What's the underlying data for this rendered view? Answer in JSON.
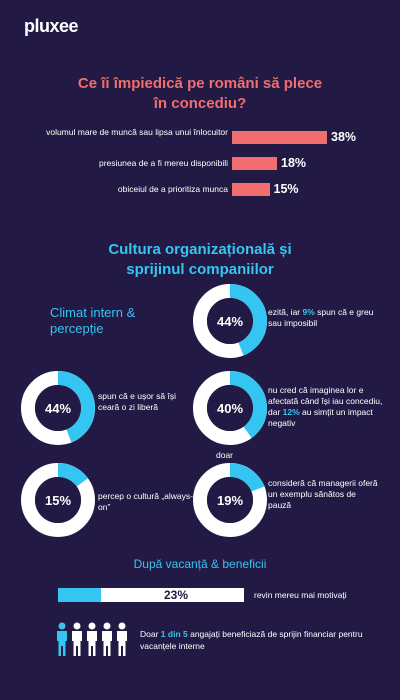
{
  "brand": {
    "logo": "pluxee"
  },
  "colors": {
    "background": "#221a44",
    "coral": "#f06e6e",
    "cyan": "#35c5f2",
    "white": "#ffffff"
  },
  "section1": {
    "title": "Ce îi împiedică pe români să plece în concediu?"
  },
  "section2": {
    "title": "Cultura organizațională și sprijinul companiilor",
    "subtitle": "Climat intern & percepție"
  },
  "donuts": [
    {
      "text_parts": [
        "ezită, iar ",
        "9%",
        " spun că e greu sau imposibil"
      ]
    },
    {
      "text_parts": [
        "spun că e ușor să își ceară o zi liberă"
      ]
    },
    {
      "text_parts": [
        "nu cred că imaginea lor e afectată când își iau concediu, dar ",
        "12%",
        " au simțit un impact negativ"
      ]
    },
    {
      "text_parts": [
        "percep o cultură „always-on”"
      ]
    },
    {
      "prefix": "doar",
      "text_parts": [
        "consideră că managerii oferă un exemplu sănătos de pauză"
      ]
    }
  ],
  "section3": {
    "title": "După vacanță & beneficii",
    "progress_text": "revin mereu mai motivați",
    "people_text_parts": [
      "Doar ",
      "1 din 5",
      " angajați beneficiază de sprijin financiar pentru vacanțele interne"
    ]
  },
  "chart_data": [
    {
      "type": "bar",
      "title": "Ce îi împiedică pe români să plece în concediu?",
      "categories": [
        "volumul mare de muncă sau lipsa unui înlocuitor",
        "presiunea de a fi mereu disponibili",
        "obiceiul de a prioritiza munca"
      ],
      "values": [
        38,
        18,
        15
      ],
      "value_labels": [
        "38%",
        "18%",
        "15%"
      ],
      "orientation": "horizontal",
      "xlim": [
        0,
        38
      ]
    },
    {
      "type": "pie",
      "donut": true,
      "values": [
        44,
        44,
        40,
        15,
        19
      ],
      "value_labels": [
        "44%",
        "44%",
        "40%",
        "15%",
        "19%"
      ]
    },
    {
      "type": "bar",
      "values": [
        23
      ],
      "value_labels": [
        "23%"
      ],
      "xlim": [
        0,
        100
      ]
    },
    {
      "type": "pictogram",
      "total": 5,
      "highlighted": 1
    }
  ]
}
